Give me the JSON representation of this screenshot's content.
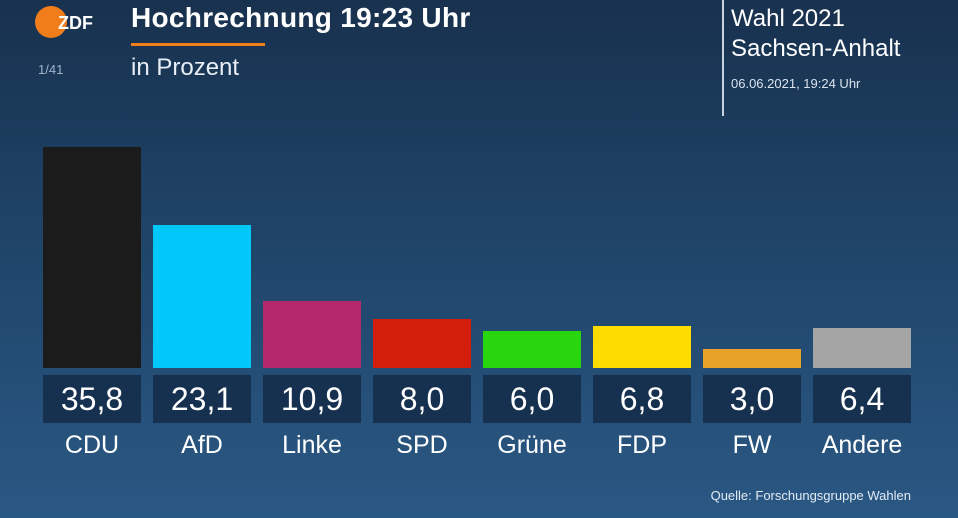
{
  "header": {
    "logo_text": "ZDF",
    "page_indicator": "1/41",
    "title": "Hochrechnung 19:23 Uhr",
    "subtitle": "in Prozent",
    "election_line1": "Wahl 2021",
    "election_line2": "Sachsen-Anhalt",
    "timestamp": "06.06.2021, 19:24 Uhr"
  },
  "colors": {
    "accent": "#f07d19",
    "value_box": "#16314f"
  },
  "chart_data": {
    "type": "bar",
    "title": "Hochrechnung 19:23 Uhr",
    "subtitle": "in Prozent",
    "xlabel": "",
    "ylabel": "Prozent",
    "ylim": [
      0,
      35.8
    ],
    "grid": false,
    "categories": [
      "CDU",
      "AfD",
      "Linke",
      "SPD",
      "Grüne",
      "FDP",
      "FW",
      "Andere"
    ],
    "values": [
      35.8,
      23.1,
      10.9,
      8.0,
      6.0,
      6.8,
      3.0,
      6.4
    ],
    "value_labels": [
      "35,8",
      "23,1",
      "10,9",
      "8,0",
      "6,0",
      "6,8",
      "3,0",
      "6,4"
    ],
    "bar_colors": [
      "#1b1b1b",
      "#00c8fa",
      "#b4286e",
      "#d21e0a",
      "#27d60c",
      "#ffdc00",
      "#e8a22a",
      "#a5a5a5"
    ]
  },
  "footer": {
    "source": "Quelle: Forschungsgruppe Wahlen"
  }
}
